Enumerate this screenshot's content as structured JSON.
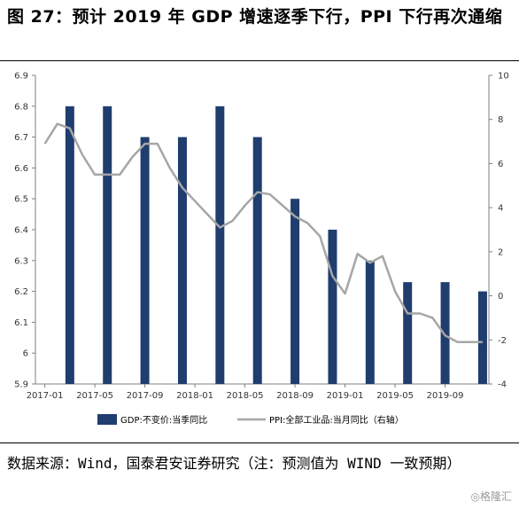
{
  "title": "图 27：预计 2019 年 GDP 增速逐季下行，PPI 下行再次通缩",
  "source": "数据来源：Wind，国泰君安证券研究（注：预测值为 WIND 一致预期）",
  "watermark": "◎格隆汇",
  "chart_data": {
    "type": "bar+line",
    "x_ticks": [
      "2017-01",
      "2017-05",
      "2017-09",
      "2018-01",
      "2018-05",
      "2018-09",
      "2019-01",
      "2019-05",
      "2019-09"
    ],
    "x_months": [
      "2017-01",
      "2017-02",
      "2017-03",
      "2017-04",
      "2017-05",
      "2017-06",
      "2017-07",
      "2017-08",
      "2017-09",
      "2017-10",
      "2017-11",
      "2017-12",
      "2018-01",
      "2018-02",
      "2018-03",
      "2018-04",
      "2018-05",
      "2018-06",
      "2018-07",
      "2018-08",
      "2018-09",
      "2018-10",
      "2018-11",
      "2018-12",
      "2019-01",
      "2019-02",
      "2019-03",
      "2019-04",
      "2019-05",
      "2019-06",
      "2019-07",
      "2019-08",
      "2019-09",
      "2019-10",
      "2019-11",
      "2019-12"
    ],
    "left_axis": {
      "min": 5.9,
      "max": 6.9,
      "ticks": [
        "6.9",
        "6.8",
        "6.7",
        "6.6",
        "6.5",
        "6.4",
        "6.3",
        "6.2",
        "6.1",
        "6",
        "5.9"
      ]
    },
    "right_axis": {
      "min": -4,
      "max": 10,
      "ticks": [
        "10",
        "8",
        "6",
        "4",
        "2",
        "0",
        "-2",
        "-4"
      ]
    },
    "series": [
      {
        "name": "GDP:不变价:当季同比",
        "kind": "bar",
        "axis": "left",
        "color": "#1f3d6e",
        "points": [
          {
            "x": "2017-03",
            "y": 6.8
          },
          {
            "x": "2017-06",
            "y": 6.8
          },
          {
            "x": "2017-09",
            "y": 6.7
          },
          {
            "x": "2017-12",
            "y": 6.7
          },
          {
            "x": "2018-03",
            "y": 6.8
          },
          {
            "x": "2018-06",
            "y": 6.7
          },
          {
            "x": "2018-09",
            "y": 6.5
          },
          {
            "x": "2018-12",
            "y": 6.4
          },
          {
            "x": "2019-03",
            "y": 6.3
          },
          {
            "x": "2019-06",
            "y": 6.23
          },
          {
            "x": "2019-09",
            "y": 6.23
          },
          {
            "x": "2019-12",
            "y": 6.2
          }
        ]
      },
      {
        "name": "PPI:全部工业品:当月同比（右轴）",
        "kind": "line",
        "axis": "right",
        "color": "#a6a6a6",
        "values": [
          6.9,
          7.8,
          7.6,
          6.4,
          5.5,
          5.5,
          5.5,
          6.3,
          6.9,
          6.9,
          5.8,
          4.9,
          4.3,
          3.7,
          3.1,
          3.4,
          4.1,
          4.7,
          4.6,
          4.1,
          3.6,
          3.3,
          2.7,
          0.9,
          0.1,
          1.9,
          1.5,
          1.8,
          0.2,
          -0.8,
          -0.8,
          -1.0,
          -1.8,
          -2.1,
          -2.1,
          -2.1
        ]
      }
    ]
  }
}
